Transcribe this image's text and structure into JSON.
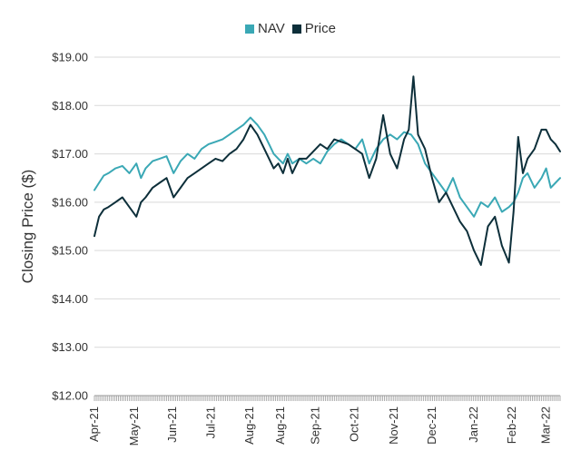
{
  "chart_data": {
    "type": "line",
    "title": "",
    "xlabel": "",
    "ylabel": "Closing Price ($)",
    "ylim": [
      12,
      19
    ],
    "y_ticks": [
      12,
      13,
      14,
      15,
      16,
      17,
      18,
      19
    ],
    "y_tick_labels": [
      "$12.00",
      "$13.00",
      "$14.00",
      "$15.00",
      "$16.00",
      "$17.00",
      "$18.00",
      "$19.00"
    ],
    "x_tick_labels": [
      "Apr-21",
      "May-21",
      "Jun-21",
      "Jul-21",
      "Aug-21",
      "Aug-21",
      "Sep-21",
      "Oct-21",
      "Nov-21",
      "Dec-21",
      "Jan-22",
      "Feb-22",
      "Mar-22"
    ],
    "x_tick_positions": [
      0,
      0.086,
      0.168,
      0.25,
      0.333,
      0.4,
      0.475,
      0.558,
      0.643,
      0.725,
      0.815,
      0.897,
      0.97
    ],
    "legend": [
      {
        "name": "NAV",
        "color": "#3aa8b5"
      },
      {
        "name": "Price",
        "color": "#0d2f3a"
      }
    ],
    "grid": true,
    "series": [
      {
        "name": "NAV",
        "color": "#3aa8b5",
        "x": [
          0,
          0.01,
          0.02,
          0.03,
          0.045,
          0.06,
          0.075,
          0.09,
          0.1,
          0.11,
          0.125,
          0.14,
          0.155,
          0.17,
          0.185,
          0.2,
          0.215,
          0.23,
          0.245,
          0.26,
          0.275,
          0.29,
          0.305,
          0.32,
          0.335,
          0.35,
          0.365,
          0.375,
          0.385,
          0.395,
          0.405,
          0.415,
          0.425,
          0.44,
          0.455,
          0.47,
          0.485,
          0.5,
          0.515,
          0.53,
          0.545,
          0.56,
          0.575,
          0.59,
          0.605,
          0.62,
          0.635,
          0.65,
          0.665,
          0.68,
          0.695,
          0.71,
          0.725,
          0.74,
          0.755,
          0.77,
          0.785,
          0.8,
          0.815,
          0.83,
          0.845,
          0.86,
          0.875,
          0.89,
          0.9,
          0.91,
          0.92,
          0.93,
          0.945,
          0.96,
          0.97,
          0.98,
          0.99,
          1.0
        ],
        "values": [
          16.25,
          16.4,
          16.55,
          16.6,
          16.7,
          16.75,
          16.6,
          16.8,
          16.5,
          16.7,
          16.85,
          16.9,
          16.95,
          16.6,
          16.85,
          17.0,
          16.9,
          17.1,
          17.2,
          17.25,
          17.3,
          17.4,
          17.5,
          17.6,
          17.75,
          17.6,
          17.4,
          17.2,
          17.0,
          16.9,
          16.8,
          17.0,
          16.8,
          16.9,
          16.8,
          16.9,
          16.8,
          17.05,
          17.2,
          17.3,
          17.2,
          17.1,
          17.3,
          16.8,
          17.1,
          17.3,
          17.4,
          17.3,
          17.45,
          17.4,
          17.2,
          16.8,
          16.6,
          16.4,
          16.2,
          16.5,
          16.1,
          15.9,
          15.7,
          16.0,
          15.9,
          16.1,
          15.8,
          15.9,
          16.0,
          16.2,
          16.5,
          16.6,
          16.3,
          16.5,
          16.7,
          16.3,
          16.4,
          16.5
        ]
      },
      {
        "name": "Price",
        "color": "#0d2f3a",
        "x": [
          0,
          0.01,
          0.02,
          0.03,
          0.045,
          0.06,
          0.075,
          0.09,
          0.1,
          0.11,
          0.125,
          0.14,
          0.155,
          0.17,
          0.185,
          0.2,
          0.215,
          0.23,
          0.245,
          0.26,
          0.275,
          0.29,
          0.305,
          0.32,
          0.335,
          0.35,
          0.365,
          0.375,
          0.385,
          0.395,
          0.405,
          0.415,
          0.425,
          0.44,
          0.455,
          0.47,
          0.485,
          0.5,
          0.515,
          0.53,
          0.545,
          0.56,
          0.575,
          0.59,
          0.605,
          0.62,
          0.635,
          0.65,
          0.665,
          0.675,
          0.685,
          0.695,
          0.71,
          0.725,
          0.74,
          0.755,
          0.77,
          0.785,
          0.8,
          0.815,
          0.83,
          0.845,
          0.86,
          0.875,
          0.89,
          0.9,
          0.91,
          0.92,
          0.93,
          0.945,
          0.96,
          0.97,
          0.98,
          0.99,
          1.0
        ],
        "values": [
          15.3,
          15.7,
          15.85,
          15.9,
          16.0,
          16.1,
          15.9,
          15.7,
          16.0,
          16.1,
          16.3,
          16.4,
          16.5,
          16.1,
          16.3,
          16.5,
          16.6,
          16.7,
          16.8,
          16.9,
          16.85,
          17.0,
          17.1,
          17.3,
          17.6,
          17.4,
          17.1,
          16.9,
          16.7,
          16.8,
          16.6,
          16.9,
          16.6,
          16.9,
          16.9,
          17.05,
          17.2,
          17.1,
          17.3,
          17.25,
          17.2,
          17.1,
          17.0,
          16.5,
          16.9,
          17.8,
          17.0,
          16.7,
          17.3,
          17.5,
          18.6,
          17.4,
          17.1,
          16.5,
          16.0,
          16.2,
          15.9,
          15.6,
          15.4,
          15.0,
          14.7,
          15.5,
          15.7,
          15.1,
          14.75,
          15.8,
          17.35,
          16.6,
          16.9,
          17.1,
          17.5,
          17.5,
          17.3,
          17.2,
          17.05
        ]
      }
    ]
  }
}
